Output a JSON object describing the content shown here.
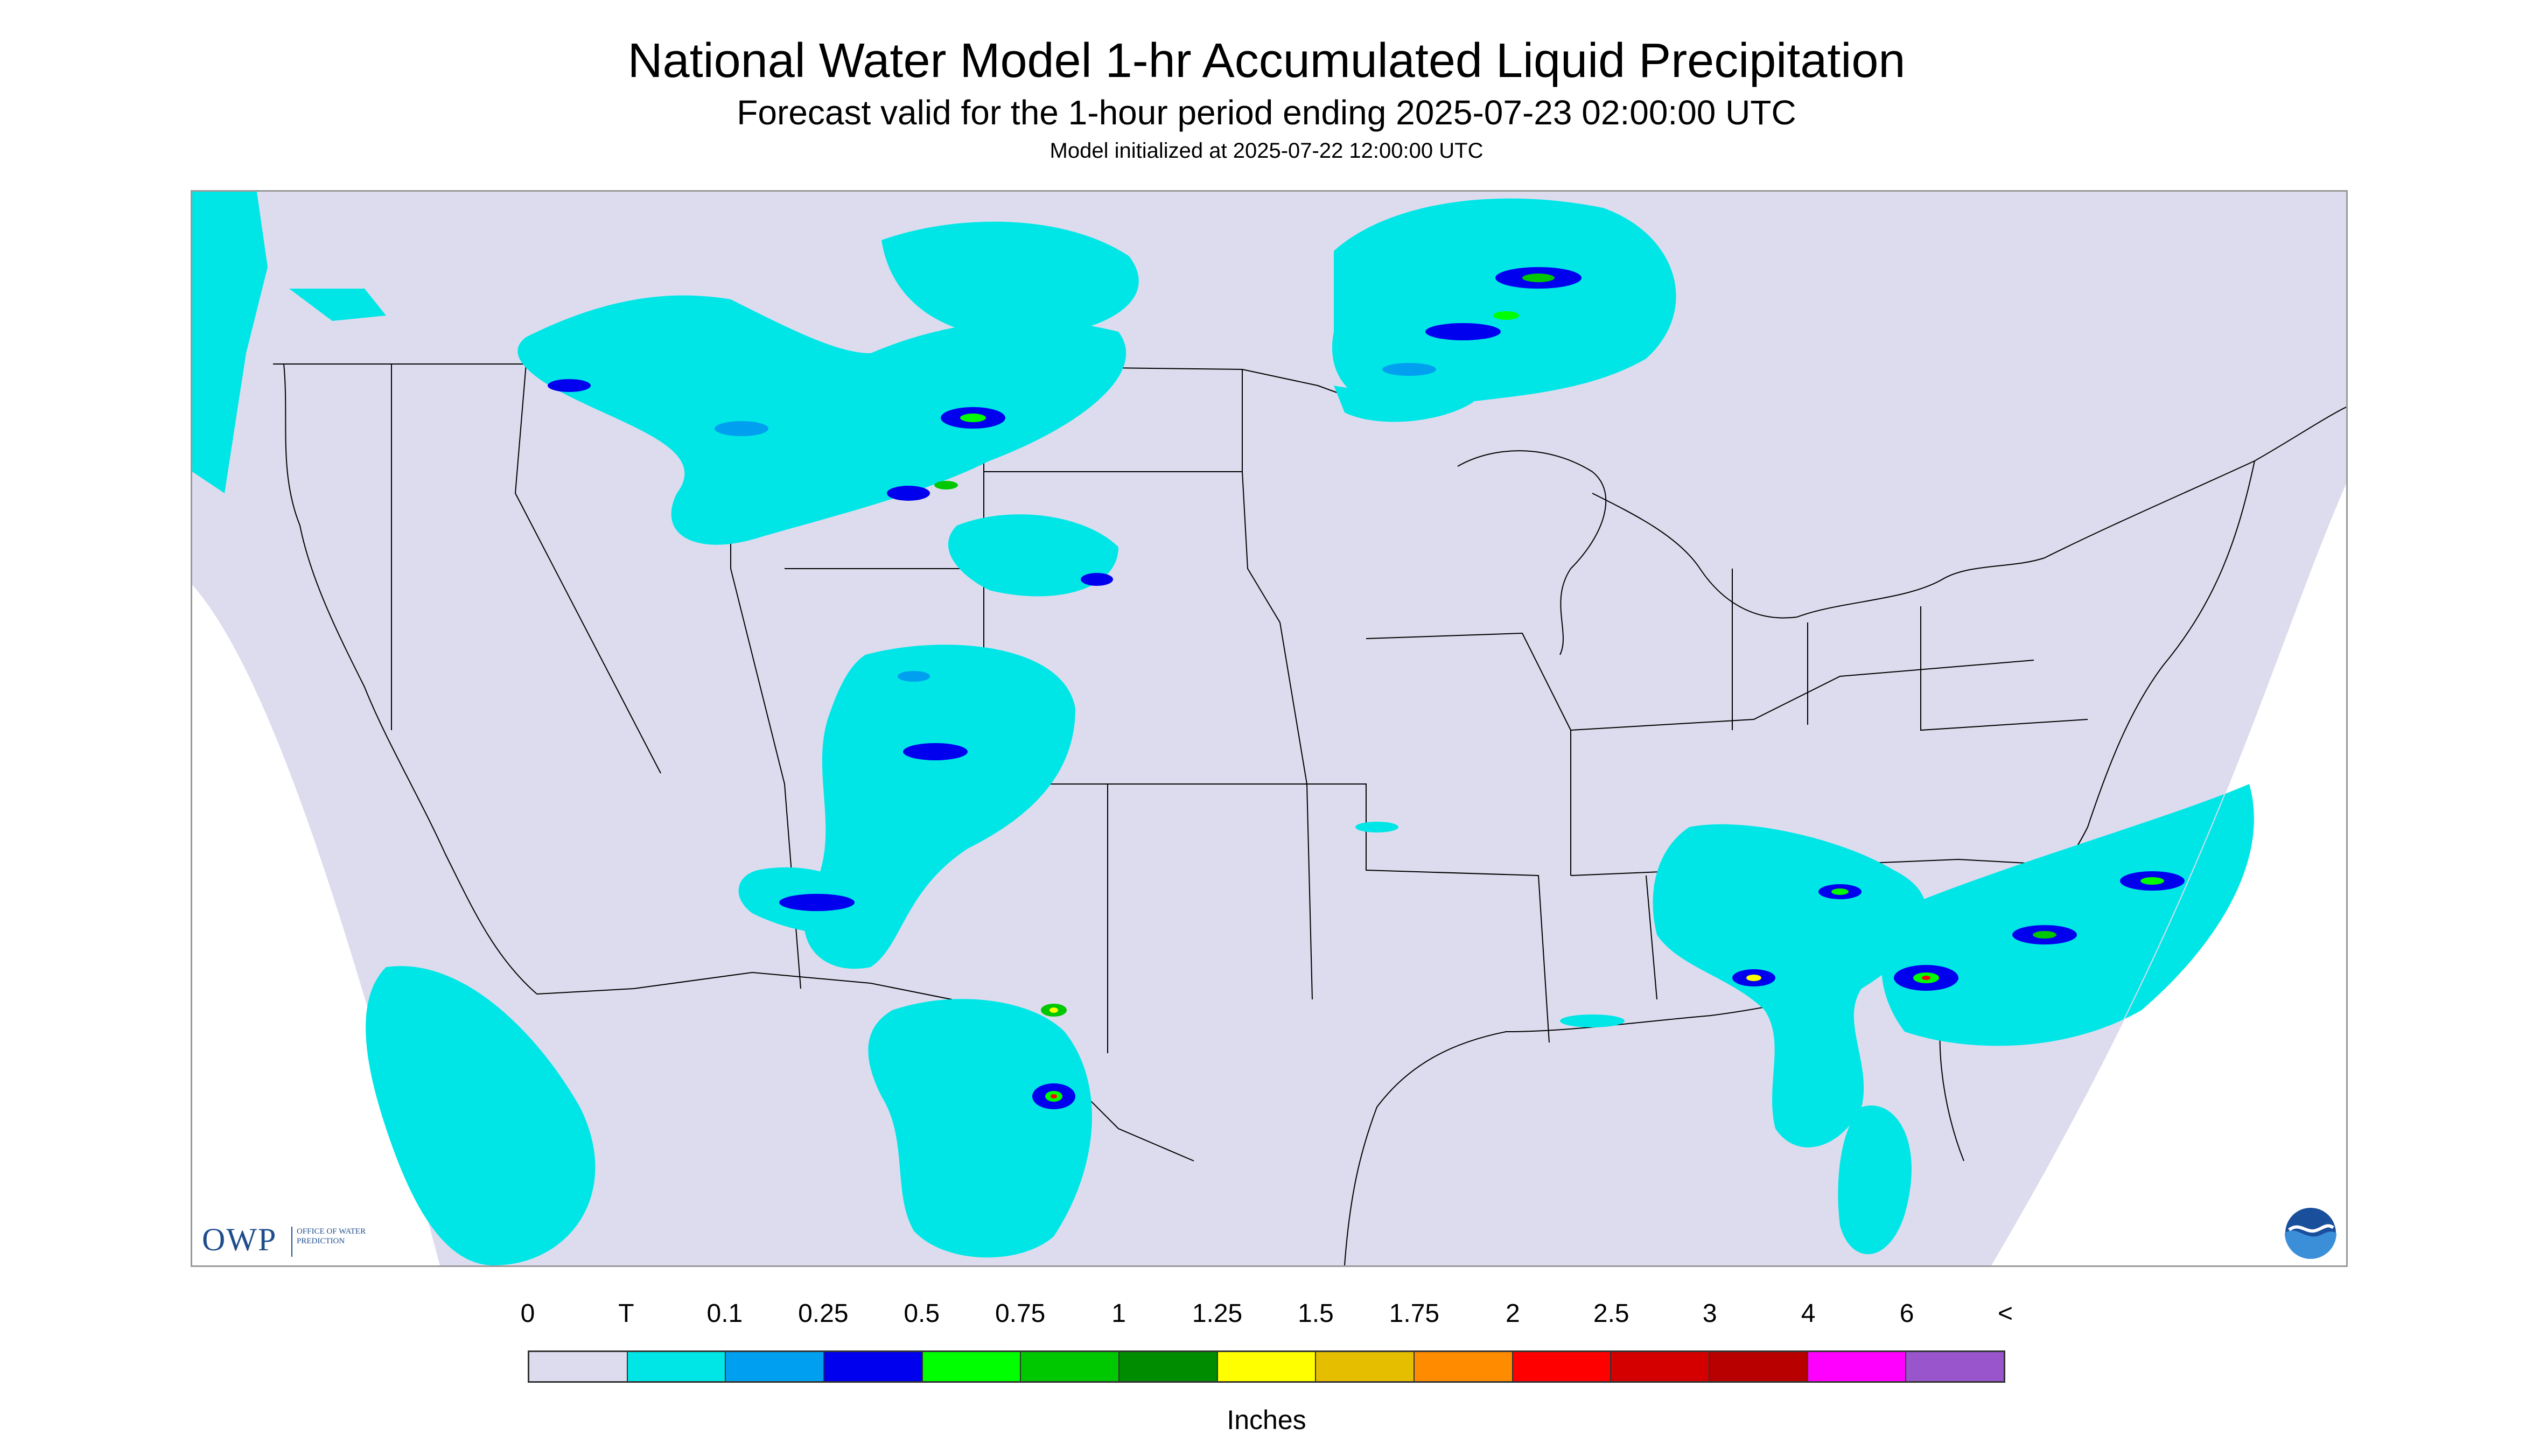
{
  "header": {
    "title": "National Water Model 1-hr Accumulated Liquid Precipitation",
    "subtitle": "Forecast valid for the 1-hour period ending 2025-07-23 02:00:00 UTC",
    "init_line": "Model initialized at 2025-07-22 12:00:00 UTC"
  },
  "map": {
    "domain_color": "#dcdcee",
    "border_color": "#000000",
    "logos": {
      "owp_letters": "OWP",
      "owp_tagline": "OFFICE OF WATER PREDICTION",
      "noaa_icon": "noaa-logo-icon"
    },
    "precip_colors": {
      "trace": "#00e6e6",
      "p01": "#009fef",
      "p025": "#0000ee",
      "p05": "#00ff00",
      "p075": "#00c800",
      "p125": "#ffff00",
      "p2": "#ff0000",
      "p3": "#b80000"
    }
  },
  "legend": {
    "labels": [
      "0",
      "T",
      "0.1",
      "0.25",
      "0.5",
      "0.75",
      "1",
      "1.25",
      "1.5",
      "1.75",
      "2",
      "2.5",
      "3",
      "4",
      "6",
      "<"
    ],
    "colors": [
      "#dcdcee",
      "#00e6e6",
      "#009fef",
      "#0000ee",
      "#00ff00",
      "#00c800",
      "#008c00",
      "#ffff00",
      "#e6be00",
      "#ff8c00",
      "#ff0000",
      "#d40000",
      "#b80000",
      "#ff00ff",
      "#9955cc"
    ],
    "units": "Inches"
  }
}
